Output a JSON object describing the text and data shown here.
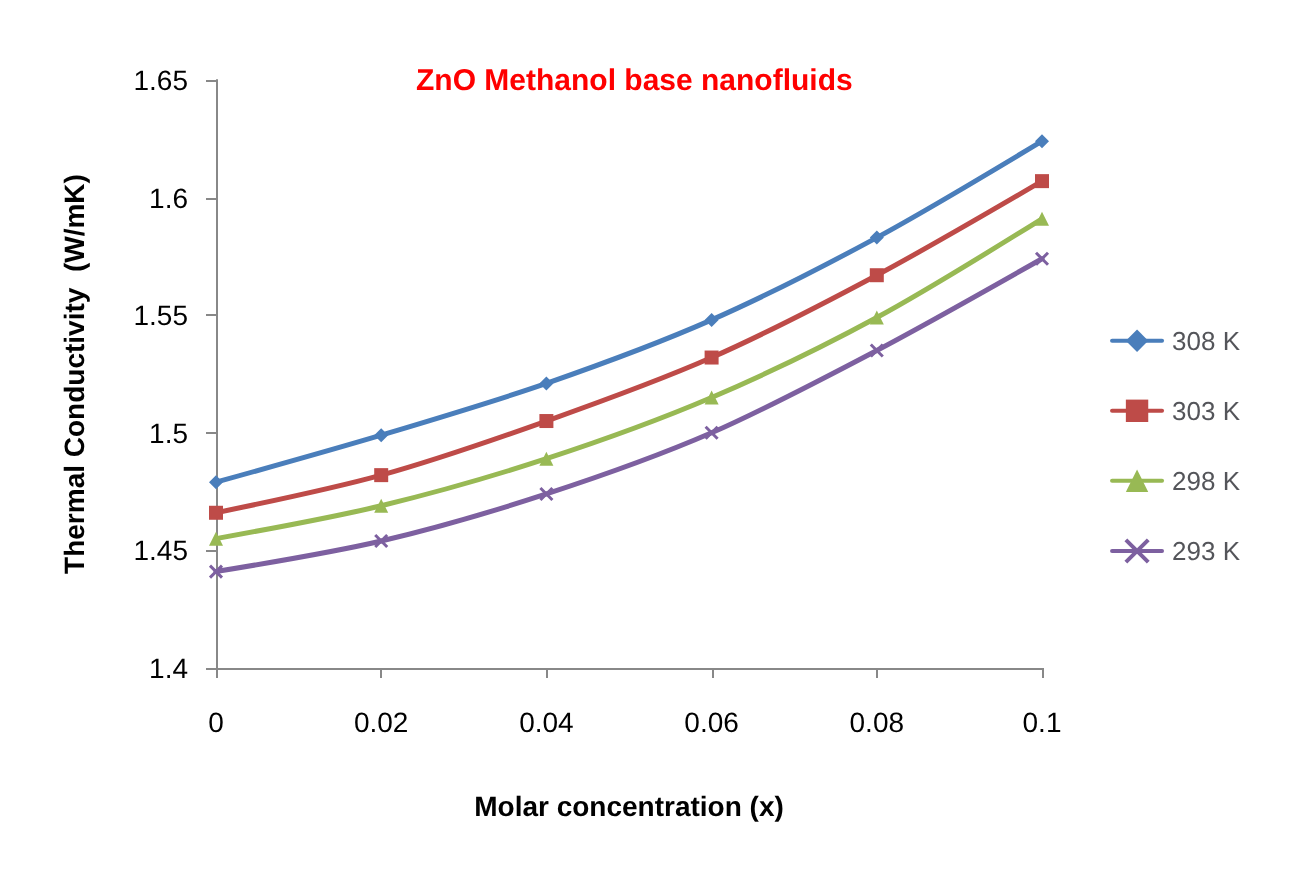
{
  "chart_data": {
    "type": "line",
    "title": "ZnO Methanol base nanofluids",
    "xlabel": "Molar concentration (x)",
    "ylabel": "Thermal Conductivity  (W/mK)",
    "x": [
      0,
      0.02,
      0.04,
      0.06,
      0.08,
      0.1
    ],
    "xlim": [
      0,
      0.1
    ],
    "xticks": [
      0,
      0.02,
      0.04,
      0.06,
      0.08,
      0.1
    ],
    "ylim": [
      1.4,
      1.65
    ],
    "yticks": [
      1.4,
      1.45,
      1.5,
      1.55,
      1.6,
      1.65
    ],
    "grid": false,
    "legend": "right",
    "line_style": "solid",
    "series": [
      {
        "name": "308 K",
        "color": "#4a7ebb",
        "marker": "diamond",
        "values": [
          1.479,
          1.499,
          1.521,
          1.548,
          1.583,
          1.624
        ]
      },
      {
        "name": "303 K",
        "color": "#be4b48",
        "marker": "square",
        "values": [
          1.466,
          1.482,
          1.505,
          1.532,
          1.567,
          1.607
        ]
      },
      {
        "name": "298 K",
        "color": "#98b954",
        "marker": "triangle",
        "values": [
          1.455,
          1.469,
          1.489,
          1.515,
          1.549,
          1.591
        ]
      },
      {
        "name": "293 K",
        "color": "#7d60a0",
        "marker": "cross",
        "values": [
          1.441,
          1.454,
          1.474,
          1.5,
          1.535,
          1.574
        ]
      }
    ]
  }
}
